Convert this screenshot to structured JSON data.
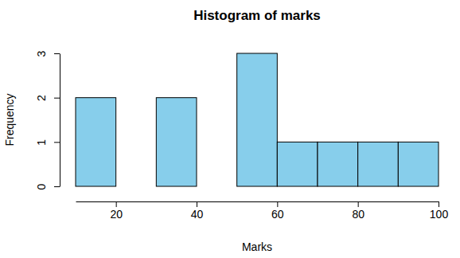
{
  "chart_data": {
    "type": "histogram",
    "title": "Histogram of marks",
    "x_label": "Marks",
    "y_label": "Frequency",
    "bins": [
      10,
      20,
      30,
      40,
      50,
      60,
      70,
      80,
      90,
      100
    ],
    "values": [
      2,
      0,
      2,
      0,
      3,
      1,
      1,
      1,
      1
    ],
    "color": "#87ceeb",
    "xlim": [
      10,
      100
    ],
    "ylim": [
      0,
      3
    ],
    "xticks": [
      20,
      40,
      60,
      80,
      100
    ],
    "yticks": [
      0,
      1,
      2,
      3
    ]
  }
}
